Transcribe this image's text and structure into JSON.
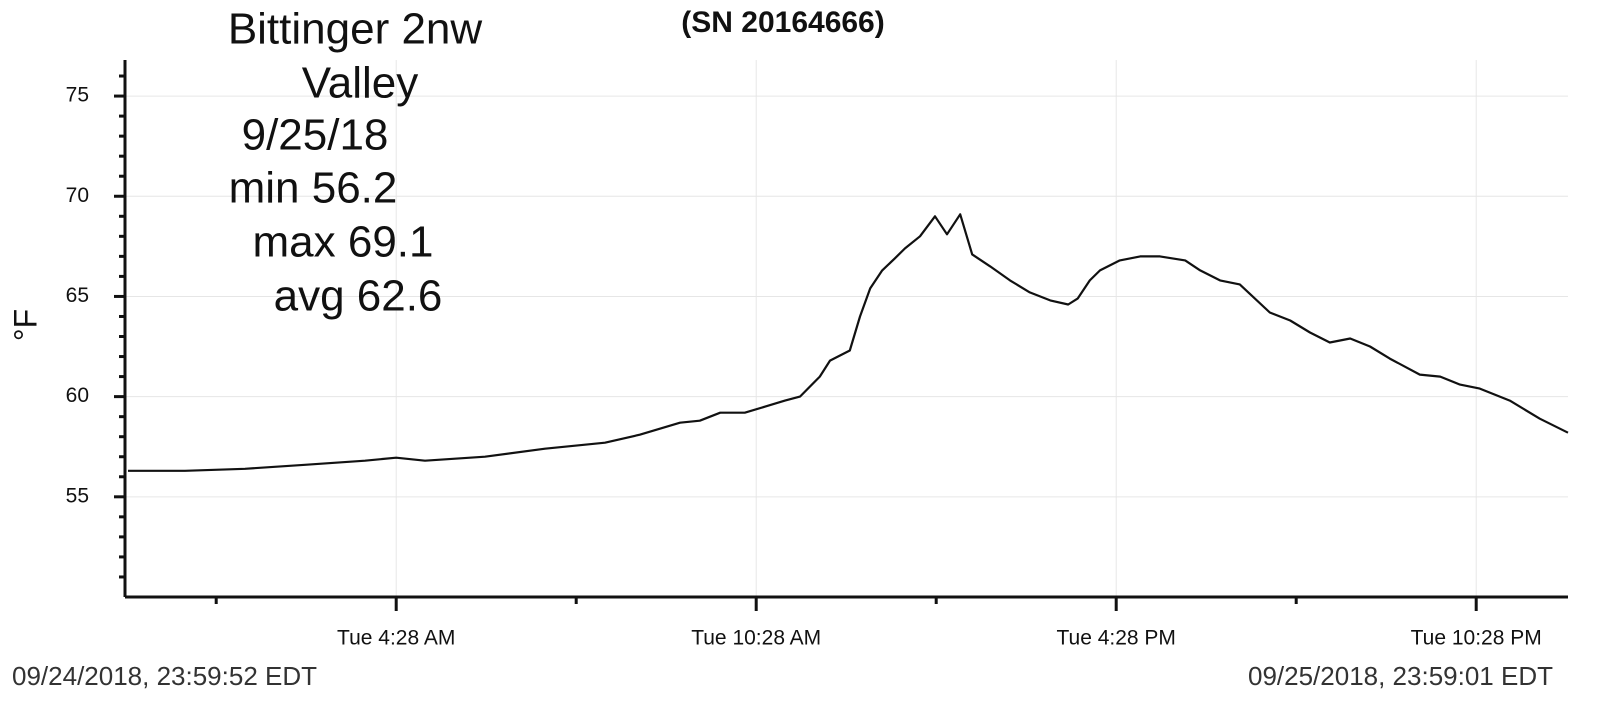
{
  "chart_data": {
    "type": "line",
    "title": "(SN 20164666)",
    "annotations": [
      "Bittinger 2nw",
      "Valley",
      "9/25/18",
      "min 56.2",
      "max 69.1",
      "avg 62.6"
    ],
    "ylabel": "°F",
    "footer_left": "09/24/2018, 23:59:52 EDT",
    "footer_right": "09/25/2018, 23:59:01 EDT",
    "x": [
      0.0,
      0.95,
      1.95,
      2.95,
      3.95,
      4.47,
      4.95,
      5.95,
      6.95,
      7.95,
      8.53,
      9.2,
      9.53,
      9.87,
      10.28,
      10.62,
      10.95,
      11.2,
      11.53,
      11.7,
      12.03,
      12.2,
      12.37,
      12.57,
      12.78,
      12.95,
      13.2,
      13.45,
      13.65,
      13.87,
      14.07,
      14.37,
      14.7,
      15.03,
      15.37,
      15.67,
      15.83,
      16.03,
      16.2,
      16.53,
      16.87,
      17.2,
      17.62,
      17.87,
      18.2,
      18.53,
      19.03,
      19.37,
      19.7,
      20.03,
      20.37,
      20.7,
      21.03,
      21.53,
      21.87,
      22.2,
      22.53,
      23.03,
      23.53,
      24.0
    ],
    "values": [
      56.3,
      56.3,
      56.4,
      56.6,
      56.8,
      56.95,
      56.8,
      57.0,
      57.4,
      57.7,
      58.1,
      58.7,
      58.8,
      59.2,
      59.2,
      59.5,
      59.8,
      60.0,
      61.0,
      61.8,
      62.3,
      64.0,
      65.4,
      66.3,
      66.9,
      67.4,
      68.0,
      69.0,
      68.1,
      69.1,
      67.1,
      66.5,
      65.8,
      65.2,
      64.8,
      64.6,
      64.9,
      65.8,
      66.3,
      66.8,
      67.0,
      67.0,
      66.8,
      66.3,
      65.8,
      65.6,
      64.2,
      63.8,
      63.2,
      62.7,
      62.9,
      62.5,
      61.9,
      61.1,
      61.0,
      60.6,
      60.4,
      59.8,
      58.9,
      58.2
    ],
    "color": "#111111",
    "xlim": [
      -0.05,
      24.0
    ],
    "xticks": [
      {
        "value": 4.47,
        "label": "Tue 4:28 AM"
      },
      {
        "value": 10.47,
        "label": "Tue 10:28 AM"
      },
      {
        "value": 16.47,
        "label": "Tue 4:28 PM"
      },
      {
        "value": 22.47,
        "label": "Tue 10:28 PM"
      }
    ],
    "xminor_ticks": [
      1.47,
      7.47,
      13.47,
      19.47
    ],
    "ylim": [
      50,
      76.8
    ],
    "yticks": [
      55,
      60,
      65,
      70,
      75
    ],
    "yminor_ticks": [
      51,
      52,
      53,
      54,
      56,
      57,
      58,
      59,
      61,
      62,
      63,
      64,
      66,
      67,
      68,
      69,
      71,
      72,
      73,
      74,
      76
    ],
    "grid": true
  }
}
